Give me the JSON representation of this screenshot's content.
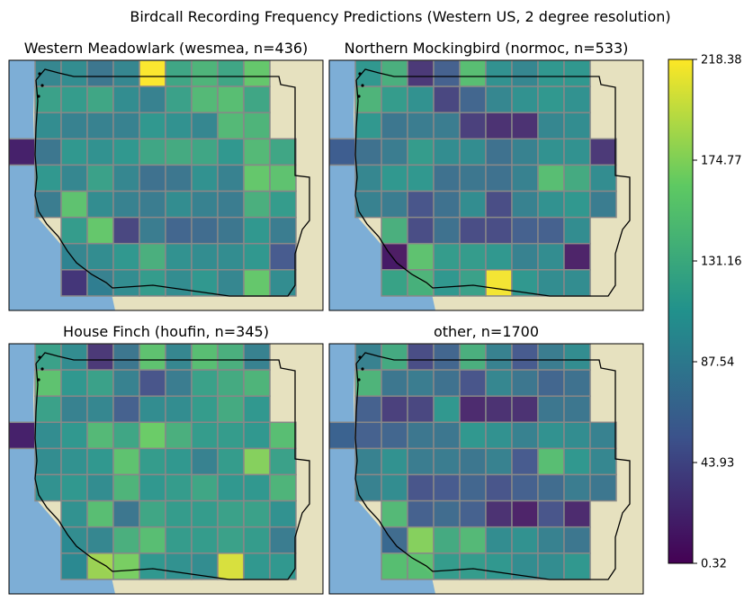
{
  "title": "Birdcall Recording Frequency Predictions (Western US, 2 degree resolution)",
  "colors": {
    "ocean": "#7daed6",
    "land": "#e6e1bf",
    "cell_border": "#888888",
    "coastline": "#000000",
    "colormap": [
      "#440154",
      "#3b528b",
      "#21918c",
      "#5ec962",
      "#fde725"
    ]
  },
  "chart_data": [
    {
      "type": "heatmap",
      "title": "Western Meadowlark (wesmea, n=436)",
      "rows": [
        [
          null,
          95,
          100,
          80,
          95,
          218,
          125,
          140,
          125,
          160,
          null,
          null
        ],
        [
          null,
          120,
          115,
          125,
          100,
          90,
          120,
          145,
          150,
          125,
          null,
          null
        ],
        [
          null,
          100,
          90,
          90,
          90,
          110,
          105,
          95,
          145,
          140,
          null,
          null
        ],
        [
          15,
          80,
          110,
          105,
          110,
          125,
          130,
          125,
          110,
          145,
          125,
          null
        ],
        [
          null,
          110,
          95,
          120,
          95,
          75,
          80,
          105,
          90,
          160,
          155,
          null
        ],
        [
          null,
          85,
          155,
          100,
          90,
          85,
          100,
          90,
          85,
          135,
          115,
          null
        ],
        [
          null,
          null,
          115,
          160,
          40,
          85,
          65,
          70,
          80,
          110,
          85,
          null
        ],
        [
          null,
          null,
          95,
          100,
          110,
          135,
          105,
          100,
          100,
          110,
          55,
          null
        ],
        [
          null,
          null,
          30,
          90,
          100,
          115,
          100,
          110,
          95,
          160,
          100,
          null
        ]
      ],
      "vmin": 0.32,
      "vmax": 218.38,
      "colorbar_ticks": [
        0.32,
        43.93,
        87.54,
        131.16,
        174.77,
        218.38
      ]
    },
    {
      "type": "heatmap",
      "title": "Northern Mockingbird (normoc, n=533)",
      "rows": [
        [
          null,
          110,
          135,
          30,
          60,
          150,
          105,
          95,
          110,
          110,
          null,
          null
        ],
        [
          null,
          140,
          115,
          105,
          40,
          65,
          95,
          105,
          110,
          105,
          null,
          null
        ],
        [
          null,
          110,
          80,
          85,
          85,
          35,
          25,
          25,
          95,
          100,
          null,
          null
        ],
        [
          60,
          75,
          85,
          115,
          100,
          100,
          75,
          90,
          105,
          105,
          30,
          null
        ],
        [
          null,
          95,
          110,
          110,
          75,
          80,
          75,
          90,
          150,
          130,
          100,
          null
        ],
        [
          null,
          90,
          85,
          50,
          75,
          100,
          45,
          90,
          105,
          110,
          85,
          null
        ],
        [
          null,
          null,
          135,
          45,
          75,
          45,
          45,
          60,
          60,
          100,
          null,
          null
        ],
        [
          null,
          null,
          10,
          155,
          115,
          115,
          110,
          90,
          100,
          15,
          null,
          null
        ],
        [
          null,
          null,
          125,
          140,
          110,
          120,
          215,
          110,
          100,
          100,
          null,
          null
        ]
      ],
      "vmin": 0.32,
      "vmax": 218.38,
      "colorbar_ticks": [
        0.32,
        43.93,
        87.54,
        131.16,
        174.77,
        218.38
      ]
    },
    {
      "type": "heatmap",
      "title": "House Finch (houfin, n=345)",
      "rows": [
        [
          null,
          120,
          100,
          30,
          80,
          155,
          95,
          150,
          135,
          90,
          null,
          null
        ],
        [
          null,
          155,
          110,
          120,
          90,
          50,
          85,
          120,
          130,
          140,
          null,
          null
        ],
        [
          null,
          120,
          90,
          95,
          60,
          100,
          100,
          115,
          130,
          110,
          null,
          null
        ],
        [
          15,
          100,
          110,
          145,
          125,
          165,
          135,
          115,
          115,
          110,
          150,
          null
        ],
        [
          null,
          100,
          105,
          110,
          155,
          115,
          110,
          90,
          115,
          175,
          120,
          null
        ],
        [
          null,
          105,
          110,
          100,
          140,
          110,
          115,
          125,
          110,
          110,
          140,
          null
        ],
        [
          null,
          null,
          105,
          150,
          80,
          125,
          115,
          115,
          120,
          120,
          105,
          null
        ],
        [
          null,
          null,
          100,
          95,
          135,
          150,
          115,
          115,
          120,
          115,
          85,
          null
        ],
        [
          null,
          null,
          100,
          185,
          170,
          110,
          105,
          100,
          205,
          110,
          110,
          null
        ]
      ],
      "vmin": 0.32,
      "vmax": 218.38,
      "colorbar_ticks": [
        0.32,
        43.93,
        87.54,
        131.16,
        174.77,
        218.38
      ]
    },
    {
      "type": "heatmap",
      "title": "other, n=1700",
      "rows": [
        [
          null,
          90,
          130,
          45,
          65,
          135,
          90,
          55,
          85,
          100,
          null,
          null
        ],
        [
          null,
          140,
          80,
          85,
          75,
          50,
          95,
          80,
          65,
          75,
          null,
          null
        ],
        [
          null,
          60,
          35,
          40,
          110,
          20,
          25,
          25,
          80,
          80,
          null,
          null
        ],
        [
          65,
          60,
          65,
          80,
          80,
          110,
          105,
          90,
          105,
          100,
          90,
          null
        ],
        [
          null,
          90,
          105,
          85,
          85,
          80,
          90,
          55,
          150,
          110,
          95,
          null
        ],
        [
          null,
          90,
          100,
          50,
          55,
          65,
          50,
          60,
          70,
          85,
          80,
          null
        ],
        [
          null,
          null,
          145,
          60,
          70,
          60,
          25,
          15,
          50,
          20,
          null,
          null
        ],
        [
          null,
          null,
          70,
          175,
          130,
          145,
          100,
          105,
          90,
          80,
          null,
          null
        ],
        [
          null,
          null,
          155,
          155,
          115,
          115,
          110,
          100,
          100,
          110,
          null,
          null
        ]
      ],
      "vmin": 0.32,
      "vmax": 218.38,
      "colorbar_ticks": [
        0.32,
        43.93,
        87.54,
        131.16,
        174.77,
        218.38
      ]
    }
  ]
}
